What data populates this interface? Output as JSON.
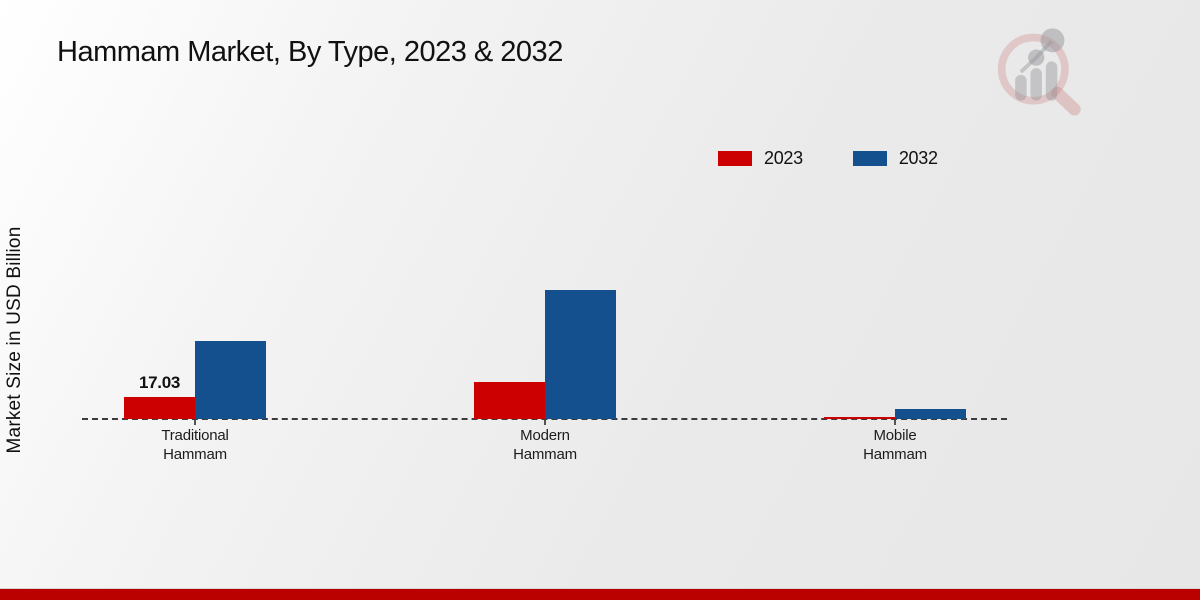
{
  "title": "Hammam Market, By Type, 2023 & 2032",
  "y_axis_label": "Market Size in USD Billion",
  "legend": [
    {
      "label": "2023",
      "color": "#cc0001"
    },
    {
      "label": "2032",
      "color": "#15508e"
    }
  ],
  "colors": {
    "series_2023": "#cc0001",
    "series_2032": "#15508e",
    "bottom_band": "#bb0000",
    "baseline": "#3c3c3c",
    "title_text": "#111111"
  },
  "watermark_icon": "magnifier-growth-chart-logo",
  "chart_data": {
    "type": "bar",
    "title": "Hammam Market, By Type, 2023 & 2032",
    "ylabel": "Market Size in USD Billion",
    "xlabel": "",
    "categories": [
      "Traditional Hammam",
      "Modern Hammam",
      "Mobile Hammam"
    ],
    "series": [
      {
        "name": "2023",
        "color": "#cc0001",
        "values": [
          17.03,
          28.6,
          1.9
        ]
      },
      {
        "name": "2032",
        "color": "#15508e",
        "values": [
          60.4,
          99.8,
          7.7
        ]
      }
    ],
    "data_labels": [
      {
        "series_index": 0,
        "category_index": 0,
        "text": "17.03"
      }
    ],
    "legend_position": "top-right",
    "baseline_style": "dashed",
    "grid": false,
    "y_axis_ticks_visible": false,
    "ylim": [
      0,
      110
    ]
  }
}
